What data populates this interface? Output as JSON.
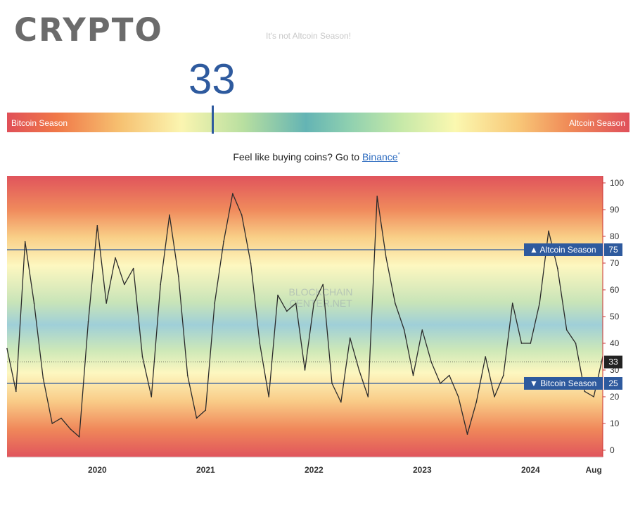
{
  "brand": {
    "logo_text": "CRYPTO"
  },
  "header": {
    "faded_title": "It's not Altcoin Season!",
    "current_value": "33"
  },
  "gauge": {
    "left_label": "Bitcoin Season",
    "right_label": "Altcoin Season",
    "value": 33,
    "max": 100
  },
  "promo": {
    "text": "Feel like buying coins? Go to ",
    "link_text": "Binance",
    "sup": "*"
  },
  "chart_data": {
    "type": "line",
    "title": "",
    "xlabel": "",
    "ylabel": "",
    "ylim": [
      0,
      100
    ],
    "x_start": "2019-03",
    "x_end": "2024-09",
    "x_ticks": [
      {
        "label": "2020",
        "x": "2020-01"
      },
      {
        "label": "2021",
        "x": "2021-01"
      },
      {
        "label": "2022",
        "x": "2022-01"
      },
      {
        "label": "2023",
        "x": "2023-01"
      },
      {
        "label": "2024",
        "x": "2024-01"
      },
      {
        "label": "Aug",
        "x": "2024-08"
      }
    ],
    "y_ticks": [
      0,
      10,
      20,
      30,
      40,
      50,
      60,
      70,
      80,
      90,
      100
    ],
    "reference_lines": [
      {
        "label": "Altcoin Season",
        "value": 75,
        "marker": "▲"
      },
      {
        "label": "Bitcoin Season",
        "value": 25,
        "marker": "▼"
      }
    ],
    "current": {
      "value": 33
    },
    "watermark": "BLOCKCHAIN CENTER.NET",
    "series": [
      {
        "x": [
          "2019-03",
          "2019-04",
          "2019-05",
          "2019-06",
          "2019-07",
          "2019-08",
          "2019-09",
          "2019-10",
          "2019-11",
          "2019-12",
          "2020-01",
          "2020-02",
          "2020-03",
          "2020-04",
          "2020-05",
          "2020-06",
          "2020-07",
          "2020-08",
          "2020-09",
          "2020-10",
          "2020-11",
          "2020-12",
          "2021-01",
          "2021-02",
          "2021-03",
          "2021-04",
          "2021-05",
          "2021-06",
          "2021-07",
          "2021-08",
          "2021-09",
          "2021-10",
          "2021-11",
          "2021-12",
          "2022-01",
          "2022-02",
          "2022-03",
          "2022-04",
          "2022-05",
          "2022-06",
          "2022-07",
          "2022-08",
          "2022-09",
          "2022-10",
          "2022-11",
          "2022-12",
          "2023-01",
          "2023-02",
          "2023-03",
          "2023-04",
          "2023-05",
          "2023-06",
          "2023-07",
          "2023-08",
          "2023-09",
          "2023-10",
          "2023-11",
          "2023-12",
          "2024-01",
          "2024-02",
          "2024-03",
          "2024-04",
          "2024-05",
          "2024-06",
          "2024-07",
          "2024-08",
          "2024-09"
        ],
        "values": [
          38,
          22,
          78,
          55,
          27,
          10,
          12,
          8,
          5,
          48,
          84,
          55,
          72,
          62,
          68,
          35,
          20,
          62,
          88,
          65,
          28,
          12,
          15,
          55,
          78,
          96,
          88,
          70,
          40,
          20,
          58,
          52,
          55,
          30,
          55,
          62,
          25,
          18,
          42,
          30,
          20,
          95,
          72,
          55,
          45,
          28,
          45,
          33,
          25,
          28,
          20,
          6,
          18,
          35,
          20,
          28,
          55,
          40,
          40,
          55,
          82,
          68,
          45,
          40,
          22,
          20,
          35
        ]
      }
    ]
  }
}
